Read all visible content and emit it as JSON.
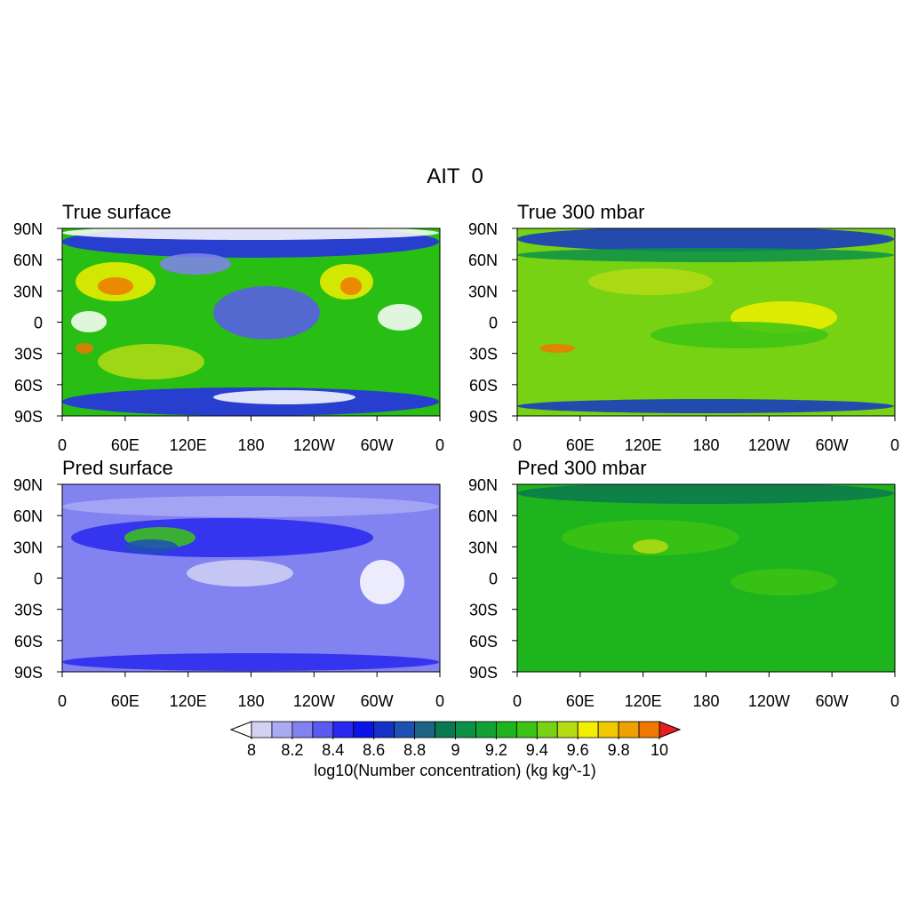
{
  "title": "AIT  0",
  "panels": [
    {
      "title": "True surface"
    },
    {
      "title": "True 300 mbar"
    },
    {
      "title": "Pred surface"
    },
    {
      "title": "Pred 300 mbar"
    }
  ],
  "map_axes": {
    "xlim": [
      0,
      360
    ],
    "ylim": [
      -90,
      90
    ],
    "xticks": [
      0,
      {
        "value": 60,
        "label": "60E"
      },
      {
        "value": 120,
        "label": "120E"
      },
      180,
      {
        "value": 240,
        "label": "120W"
      },
      {
        "value": 300,
        "label": "60W"
      },
      {
        "value": 360,
        "label": "0"
      }
    ],
    "yticks": [
      {
        "value": 90,
        "label": "90N"
      },
      {
        "value": 60,
        "label": "60N"
      },
      {
        "value": 30,
        "label": "30N"
      },
      0,
      {
        "value": -30,
        "label": "30S"
      },
      {
        "value": -60,
        "label": "60S"
      },
      {
        "value": -90,
        "label": "90S"
      }
    ]
  },
  "colorbar": {
    "title": "log10(Number concentration) (kg kg^-1)",
    "lim": [
      8,
      10
    ],
    "ticks": [
      8,
      8.2,
      8.4,
      8.6,
      8.8,
      9,
      9.2,
      9.4,
      9.6,
      9.8,
      10
    ],
    "under_color": "#ffffff",
    "over_color": "#e61e1e",
    "colors": [
      "#d2d2f5",
      "#aaaaf5",
      "#8282f0",
      "#5a5af0",
      "#2828f0",
      "#0a14e6",
      "#1432c8",
      "#1e50b4",
      "#1e6482",
      "#0a7850",
      "#0a9146",
      "#14a032",
      "#1eb41e",
      "#3cc314",
      "#78d214",
      "#b4dc14",
      "#f0f000",
      "#f0c800",
      "#f0a000",
      "#f07800"
    ]
  }
}
